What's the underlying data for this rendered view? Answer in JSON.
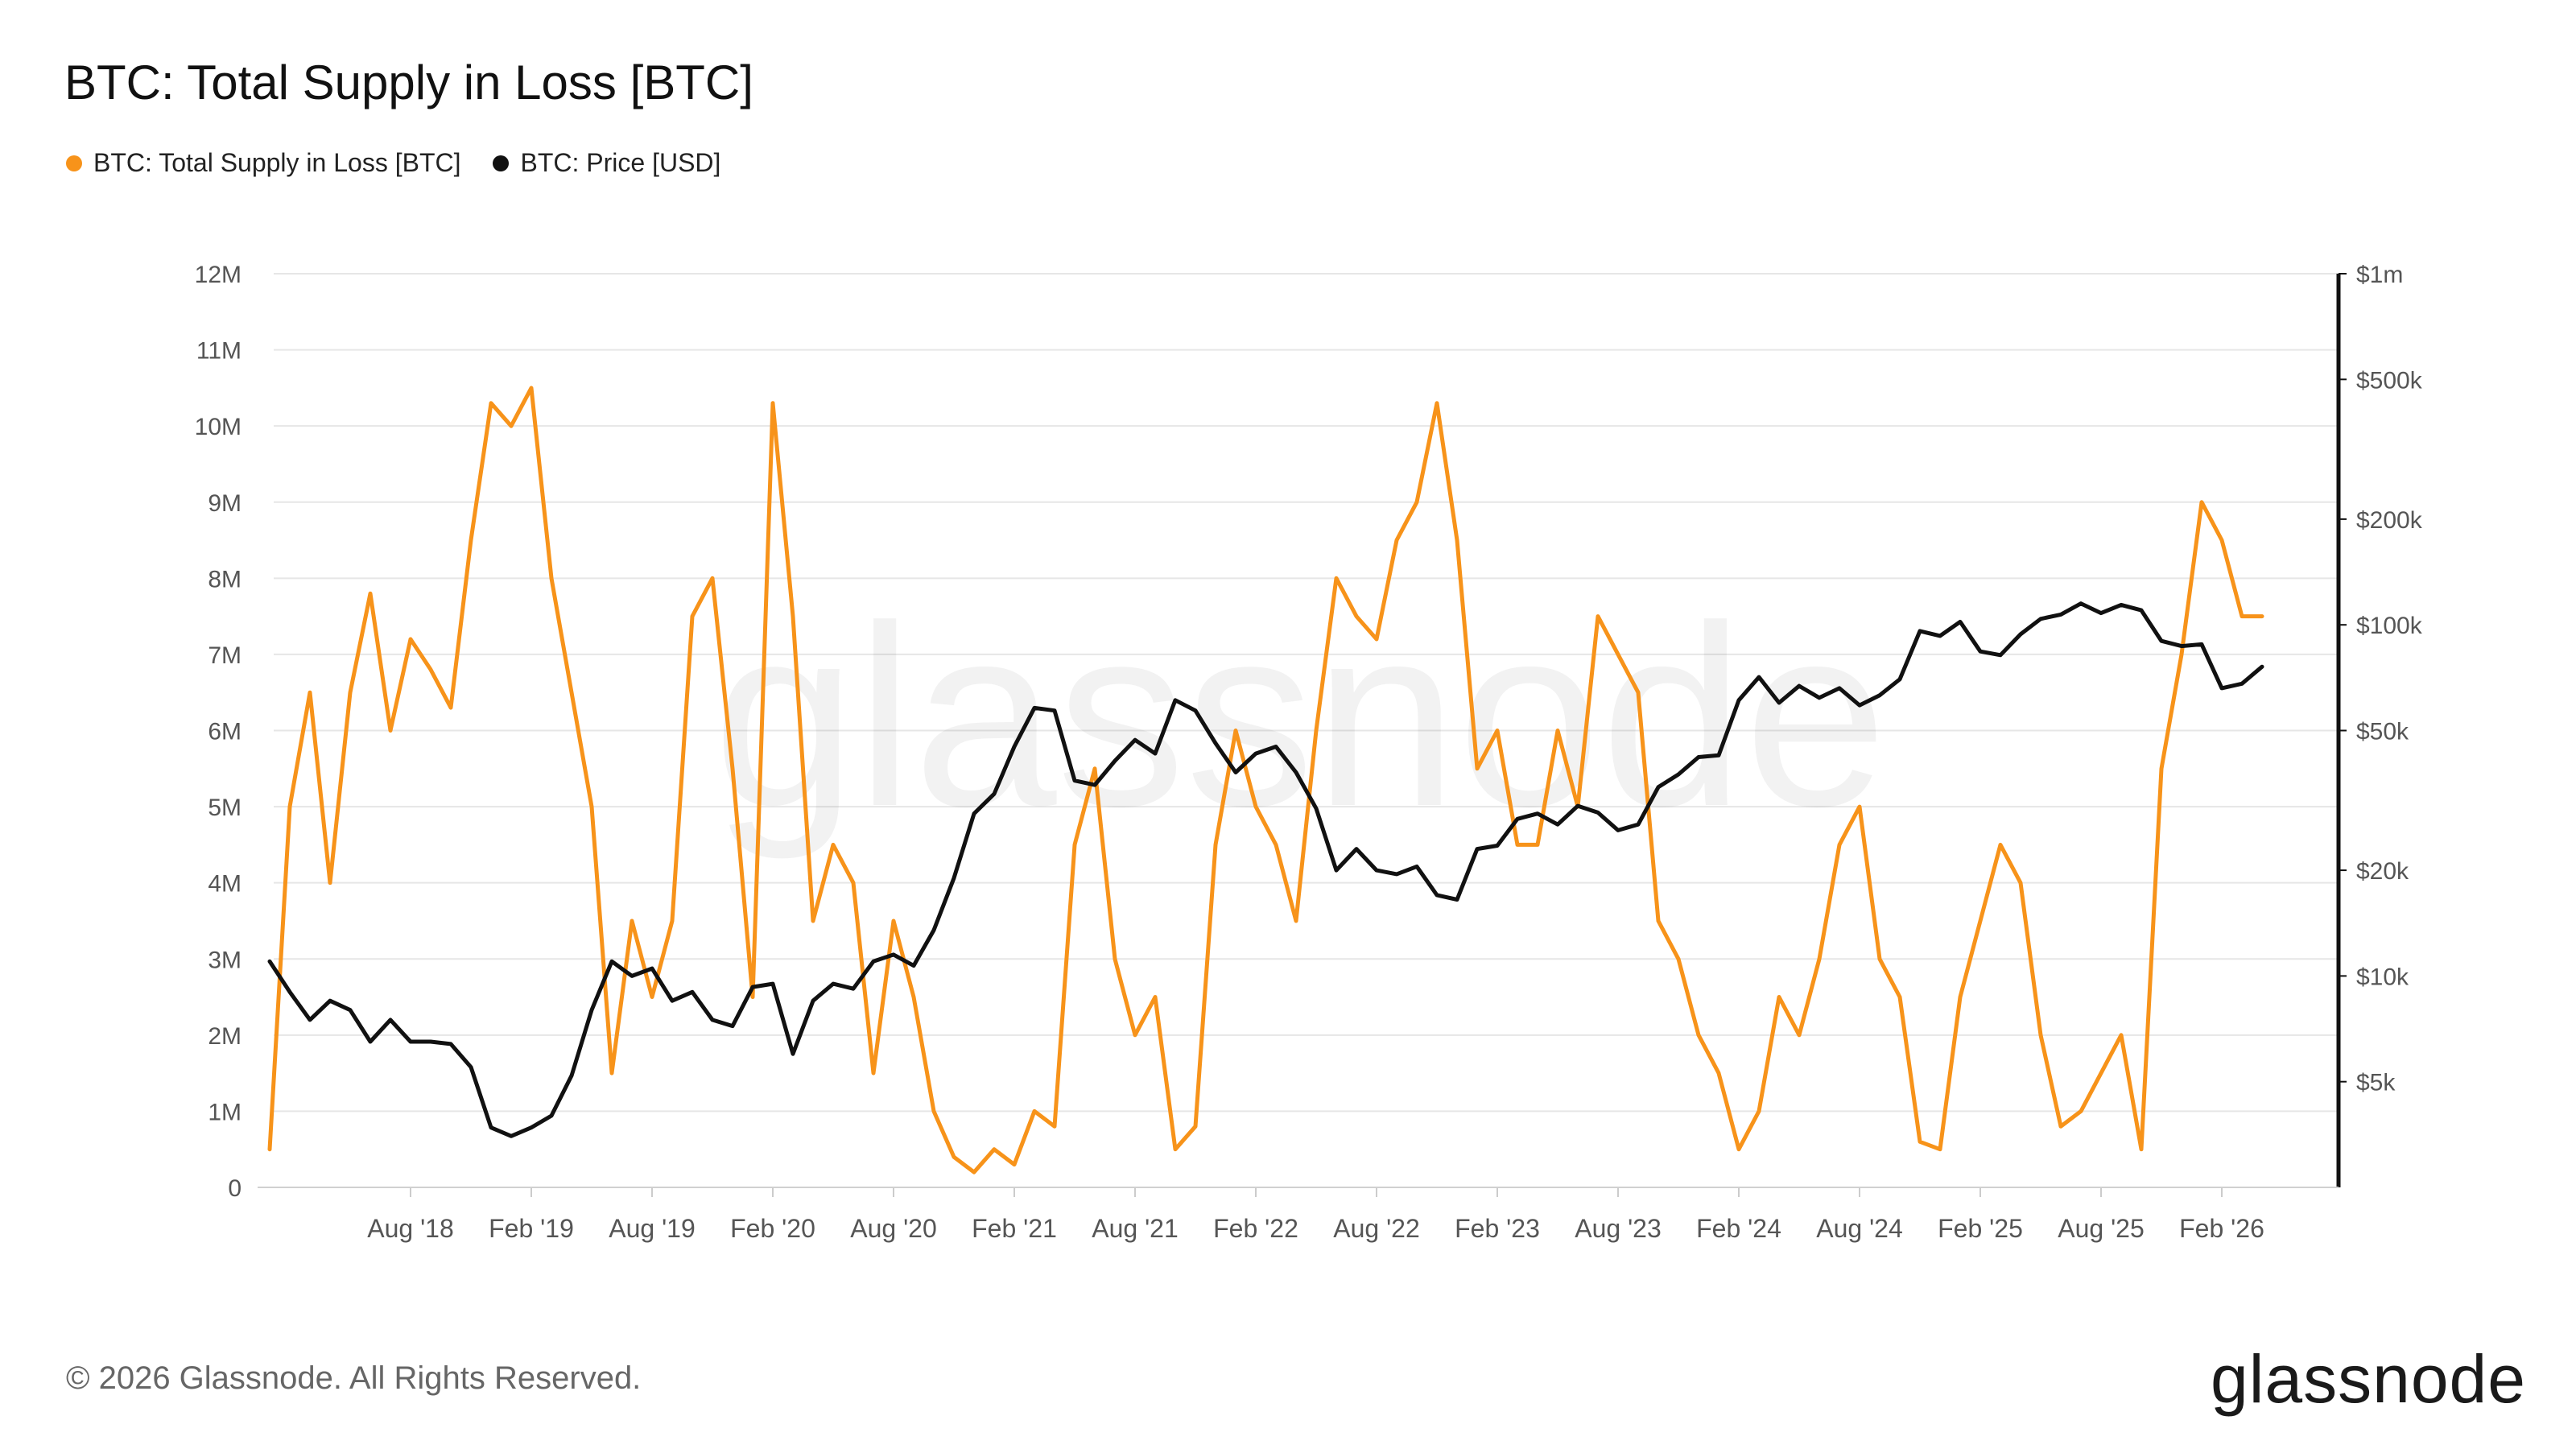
{
  "chart_data": {
    "type": "line",
    "title": "BTC: Total Supply in Loss [BTC]",
    "watermark": "glassnode",
    "legend_position": "top-left",
    "grid": true,
    "x_ticks": [
      "Aug '18",
      "Feb '19",
      "Aug '19",
      "Feb '20",
      "Aug '20",
      "Feb '21",
      "Aug '21",
      "Feb '22",
      "Aug '22",
      "Feb '23",
      "Aug '23",
      "Feb '24",
      "Aug '24",
      "Feb '25",
      "Aug '25",
      "Feb '26"
    ],
    "x_range": [
      "2018-01",
      "2026-06"
    ],
    "y_left": {
      "ticks": [
        "0",
        "1M",
        "2M",
        "3M",
        "4M",
        "5M",
        "6M",
        "7M",
        "8M",
        "9M",
        "10M",
        "11M",
        "12M"
      ],
      "range": [
        0,
        12000000
      ]
    },
    "y_right": {
      "scale": "log",
      "ticks": [
        "$1m",
        "$500k",
        "$200k",
        "$100k",
        "$50k",
        "$20k",
        "$10k",
        "$5k"
      ],
      "tick_values": [
        1000000,
        500000,
        200000,
        100000,
        50000,
        20000,
        10000,
        5000
      ],
      "range": [
        2500,
        1000000
      ]
    },
    "series": [
      {
        "name": "BTC: Total Supply in Loss [BTC]",
        "color": "#F7931A",
        "axis": "left",
        "points": [
          [
            "2018-01",
            0.5
          ],
          [
            "2018-02",
            5.0
          ],
          [
            "2018-03",
            6.5
          ],
          [
            "2018-04",
            4.0
          ],
          [
            "2018-05",
            6.5
          ],
          [
            "2018-06",
            7.8
          ],
          [
            "2018-07",
            6.0
          ],
          [
            "2018-08",
            7.2
          ],
          [
            "2018-09",
            6.8
          ],
          [
            "2018-10",
            6.3
          ],
          [
            "2018-11",
            8.5
          ],
          [
            "2018-12",
            10.3
          ],
          [
            "2019-01",
            10.0
          ],
          [
            "2019-02",
            10.5
          ],
          [
            "2019-03",
            8.0
          ],
          [
            "2019-04",
            6.5
          ],
          [
            "2019-05",
            5.0
          ],
          [
            "2019-06",
            1.5
          ],
          [
            "2019-07",
            3.5
          ],
          [
            "2019-08",
            2.5
          ],
          [
            "2019-09",
            3.5
          ],
          [
            "2019-10",
            7.5
          ],
          [
            "2019-11",
            8.0
          ],
          [
            "2019-12",
            5.5
          ],
          [
            "2020-01",
            2.5
          ],
          [
            "2020-02",
            10.3
          ],
          [
            "2020-03",
            7.5
          ],
          [
            "2020-04",
            3.5
          ],
          [
            "2020-05",
            4.5
          ],
          [
            "2020-06",
            4.0
          ],
          [
            "2020-07",
            1.5
          ],
          [
            "2020-08",
            3.5
          ],
          [
            "2020-09",
            2.5
          ],
          [
            "2020-10",
            1.0
          ],
          [
            "2020-11",
            0.4
          ],
          [
            "2020-12",
            0.2
          ],
          [
            "2021-01",
            0.5
          ],
          [
            "2021-02",
            0.3
          ],
          [
            "2021-03",
            1.0
          ],
          [
            "2021-04",
            0.8
          ],
          [
            "2021-05",
            4.5
          ],
          [
            "2021-06",
            5.5
          ],
          [
            "2021-07",
            3.0
          ],
          [
            "2021-08",
            2.0
          ],
          [
            "2021-09",
            2.5
          ],
          [
            "2021-10",
            0.5
          ],
          [
            "2021-11",
            0.8
          ],
          [
            "2021-12",
            4.5
          ],
          [
            "2022-01",
            6.0
          ],
          [
            "2022-02",
            5.0
          ],
          [
            "2022-03",
            4.5
          ],
          [
            "2022-04",
            3.5
          ],
          [
            "2022-05",
            6.0
          ],
          [
            "2022-06",
            8.0
          ],
          [
            "2022-07",
            7.5
          ],
          [
            "2022-08",
            7.2
          ],
          [
            "2022-09",
            8.5
          ],
          [
            "2022-10",
            9.0
          ],
          [
            "2022-11",
            10.3
          ],
          [
            "2022-12",
            8.5
          ],
          [
            "2023-01",
            5.5
          ],
          [
            "2023-02",
            6.0
          ],
          [
            "2023-03",
            4.5
          ],
          [
            "2023-04",
            4.5
          ],
          [
            "2023-05",
            6.0
          ],
          [
            "2023-06",
            5.0
          ],
          [
            "2023-07",
            7.5
          ],
          [
            "2023-08",
            7.0
          ],
          [
            "2023-09",
            6.5
          ],
          [
            "2023-10",
            3.5
          ],
          [
            "2023-11",
            3.0
          ],
          [
            "2023-12",
            2.0
          ],
          [
            "2024-01",
            1.5
          ],
          [
            "2024-02",
            0.5
          ],
          [
            "2024-03",
            1.0
          ],
          [
            "2024-04",
            2.5
          ],
          [
            "2024-05",
            2.0
          ],
          [
            "2024-06",
            3.0
          ],
          [
            "2024-07",
            4.5
          ],
          [
            "2024-08",
            5.0
          ],
          [
            "2024-09",
            3.0
          ],
          [
            "2024-10",
            2.5
          ],
          [
            "2024-11",
            0.6
          ],
          [
            "2024-12",
            0.5
          ],
          [
            "2025-01",
            2.5
          ],
          [
            "2025-02",
            3.5
          ],
          [
            "2025-03",
            4.5
          ],
          [
            "2025-04",
            4.0
          ],
          [
            "2025-05",
            2.0
          ],
          [
            "2025-06",
            0.8
          ],
          [
            "2025-07",
            1.0
          ],
          [
            "2025-08",
            1.5
          ],
          [
            "2025-09",
            2.0
          ],
          [
            "2025-10",
            0.5
          ],
          [
            "2025-11",
            5.5
          ],
          [
            "2025-12",
            7.0
          ],
          [
            "2026-01",
            9.0
          ],
          [
            "2026-02",
            8.5
          ],
          [
            "2026-03",
            7.5
          ],
          [
            "2026-04",
            7.5
          ]
        ]
      },
      {
        "name": "BTC: Price [USD]",
        "color": "#111111",
        "axis": "right",
        "points": [
          [
            "2018-01",
            11000
          ],
          [
            "2018-02",
            9000
          ],
          [
            "2018-03",
            7500
          ],
          [
            "2018-04",
            8500
          ],
          [
            "2018-05",
            8000
          ],
          [
            "2018-06",
            6500
          ],
          [
            "2018-07",
            7500
          ],
          [
            "2018-08",
            6500
          ],
          [
            "2018-09",
            6500
          ],
          [
            "2018-10",
            6400
          ],
          [
            "2018-11",
            5500
          ],
          [
            "2018-12",
            3700
          ],
          [
            "2019-01",
            3500
          ],
          [
            "2019-02",
            3700
          ],
          [
            "2019-03",
            4000
          ],
          [
            "2019-04",
            5200
          ],
          [
            "2019-05",
            8000
          ],
          [
            "2019-06",
            11000
          ],
          [
            "2019-07",
            10000
          ],
          [
            "2019-08",
            10500
          ],
          [
            "2019-09",
            8500
          ],
          [
            "2019-10",
            9000
          ],
          [
            "2019-11",
            7500
          ],
          [
            "2019-12",
            7200
          ],
          [
            "2020-01",
            9300
          ],
          [
            "2020-02",
            9500
          ],
          [
            "2020-03",
            6000
          ],
          [
            "2020-04",
            8500
          ],
          [
            "2020-05",
            9500
          ],
          [
            "2020-06",
            9200
          ],
          [
            "2020-07",
            11000
          ],
          [
            "2020-08",
            11500
          ],
          [
            "2020-09",
            10700
          ],
          [
            "2020-10",
            13500
          ],
          [
            "2020-11",
            19000
          ],
          [
            "2020-12",
            29000
          ],
          [
            "2021-01",
            33000
          ],
          [
            "2021-02",
            45000
          ],
          [
            "2021-03",
            58000
          ],
          [
            "2021-04",
            57000
          ],
          [
            "2021-05",
            36000
          ],
          [
            "2021-06",
            35000
          ],
          [
            "2021-07",
            41000
          ],
          [
            "2021-08",
            47000
          ],
          [
            "2021-09",
            43000
          ],
          [
            "2021-10",
            61000
          ],
          [
            "2021-11",
            57000
          ],
          [
            "2021-12",
            46000
          ],
          [
            "2022-01",
            38000
          ],
          [
            "2022-02",
            43000
          ],
          [
            "2022-03",
            45000
          ],
          [
            "2022-04",
            38000
          ],
          [
            "2022-05",
            30000
          ],
          [
            "2022-06",
            20000
          ],
          [
            "2022-07",
            23000
          ],
          [
            "2022-08",
            20000
          ],
          [
            "2022-09",
            19500
          ],
          [
            "2022-10",
            20500
          ],
          [
            "2022-11",
            17000
          ],
          [
            "2022-12",
            16500
          ],
          [
            "2023-01",
            23000
          ],
          [
            "2023-02",
            23500
          ],
          [
            "2023-03",
            28000
          ],
          [
            "2023-04",
            29000
          ],
          [
            "2023-05",
            27000
          ],
          [
            "2023-06",
            30500
          ],
          [
            "2023-07",
            29200
          ],
          [
            "2023-08",
            26000
          ],
          [
            "2023-09",
            27000
          ],
          [
            "2023-10",
            34500
          ],
          [
            "2023-11",
            37500
          ],
          [
            "2023-12",
            42000
          ],
          [
            "2024-01",
            42500
          ],
          [
            "2024-02",
            61000
          ],
          [
            "2024-03",
            71000
          ],
          [
            "2024-04",
            60000
          ],
          [
            "2024-05",
            67000
          ],
          [
            "2024-06",
            62000
          ],
          [
            "2024-07",
            66000
          ],
          [
            "2024-08",
            59000
          ],
          [
            "2024-09",
            63000
          ],
          [
            "2024-10",
            70000
          ],
          [
            "2024-11",
            96000
          ],
          [
            "2024-12",
            93000
          ],
          [
            "2025-01",
            102000
          ],
          [
            "2025-02",
            84000
          ],
          [
            "2025-03",
            82000
          ],
          [
            "2025-04",
            94000
          ],
          [
            "2025-05",
            104000
          ],
          [
            "2025-06",
            107000
          ],
          [
            "2025-07",
            115000
          ],
          [
            "2025-08",
            108000
          ],
          [
            "2025-09",
            114000
          ],
          [
            "2025-10",
            110000
          ],
          [
            "2025-11",
            90000
          ],
          [
            "2025-12",
            87000
          ],
          [
            "2026-01",
            88000
          ],
          [
            "2026-02",
            66000
          ],
          [
            "2026-03",
            68000
          ],
          [
            "2026-04",
            76000
          ]
        ]
      }
    ]
  },
  "footer": {
    "copyright": "© 2026 Glassnode. All Rights Reserved.",
    "logo_text": "glassnode"
  }
}
